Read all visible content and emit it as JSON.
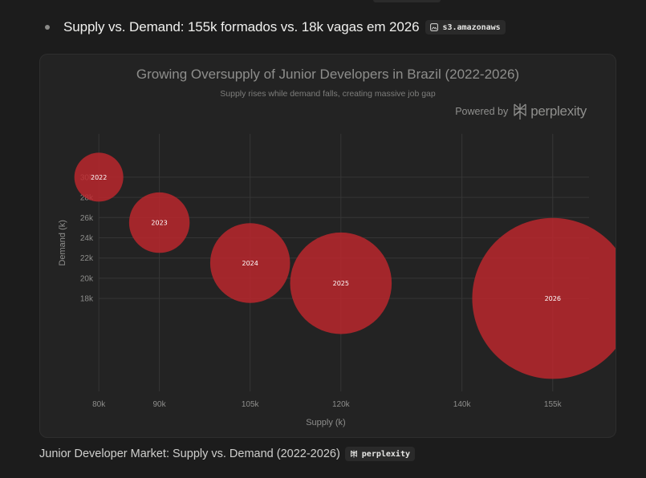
{
  "bullet": {
    "text": "Supply vs. Demand: 155k formados vs. 18k vagas em 2026",
    "citation": "s3.amazonaws",
    "citation_icon": "image-icon"
  },
  "chart_card": {
    "powered_by_label": "Powered by",
    "powered_by_brand": "perplexity"
  },
  "caption": {
    "text": "Junior Developer Market: Supply vs. Demand (2022-2026)",
    "citation": "perplexity",
    "citation_icon": "perplexity-icon"
  },
  "colors": {
    "bubble": "#c0272d",
    "background": "#232323",
    "grid": "#363636",
    "text_muted": "#8e8e8c"
  },
  "chart_data": {
    "type": "scatter",
    "title": "Growing Oversupply of Junior Developers in Brazil (2022-2026)",
    "subtitle": "Supply rises while demand falls, creating massive job gap",
    "xlabel": "Supply (k)",
    "ylabel": "Demand (k)",
    "x_ticks": [
      80,
      90,
      105,
      120,
      140,
      155
    ],
    "x_tick_labels": [
      "80k",
      "90k",
      "105k",
      "120k",
      "140k",
      "155k"
    ],
    "y_ticks": [
      18,
      20,
      22,
      24,
      26,
      28,
      30
    ],
    "y_tick_labels": [
      "18k",
      "20k",
      "22k",
      "24k",
      "26k",
      "28k",
      "30k"
    ],
    "xlim": [
      76,
      161
    ],
    "ylim": [
      8.8,
      34.2
    ],
    "grid": true,
    "bubble_size_by": "supply",
    "points": [
      {
        "label": "2022",
        "x": 80,
        "y": 30
      },
      {
        "label": "2023",
        "x": 90,
        "y": 25.5
      },
      {
        "label": "2024",
        "x": 105,
        "y": 21.5
      },
      {
        "label": "2025",
        "x": 120,
        "y": 19.5
      },
      {
        "label": "2026",
        "x": 155,
        "y": 18
      }
    ]
  }
}
